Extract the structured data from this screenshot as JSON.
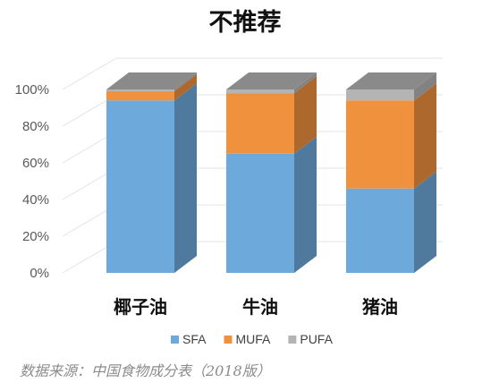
{
  "chart_data": {
    "type": "bar",
    "stacked": true,
    "percent_stacked": true,
    "style": "3d-column",
    "title": "不推荐",
    "categories": [
      "椰子油",
      "牛油",
      "猪油"
    ],
    "series": [
      {
        "name": "SFA",
        "values": [
          94,
          65,
          46
        ],
        "color": "#6ea9dc"
      },
      {
        "name": "MUFA",
        "values": [
          5,
          33,
          48
        ],
        "color": "#f0913e"
      },
      {
        "name": "PUFA",
        "values": [
          1,
          2,
          6
        ],
        "color": "#b4b4b4"
      }
    ],
    "yticks": [
      "0%",
      "20%",
      "40%",
      "60%",
      "80%",
      "100%"
    ],
    "ylim": [
      0,
      100
    ],
    "grid": true,
    "legend_position": "bottom"
  },
  "source_note": "数据来源：中国食物成分表（2018版）"
}
